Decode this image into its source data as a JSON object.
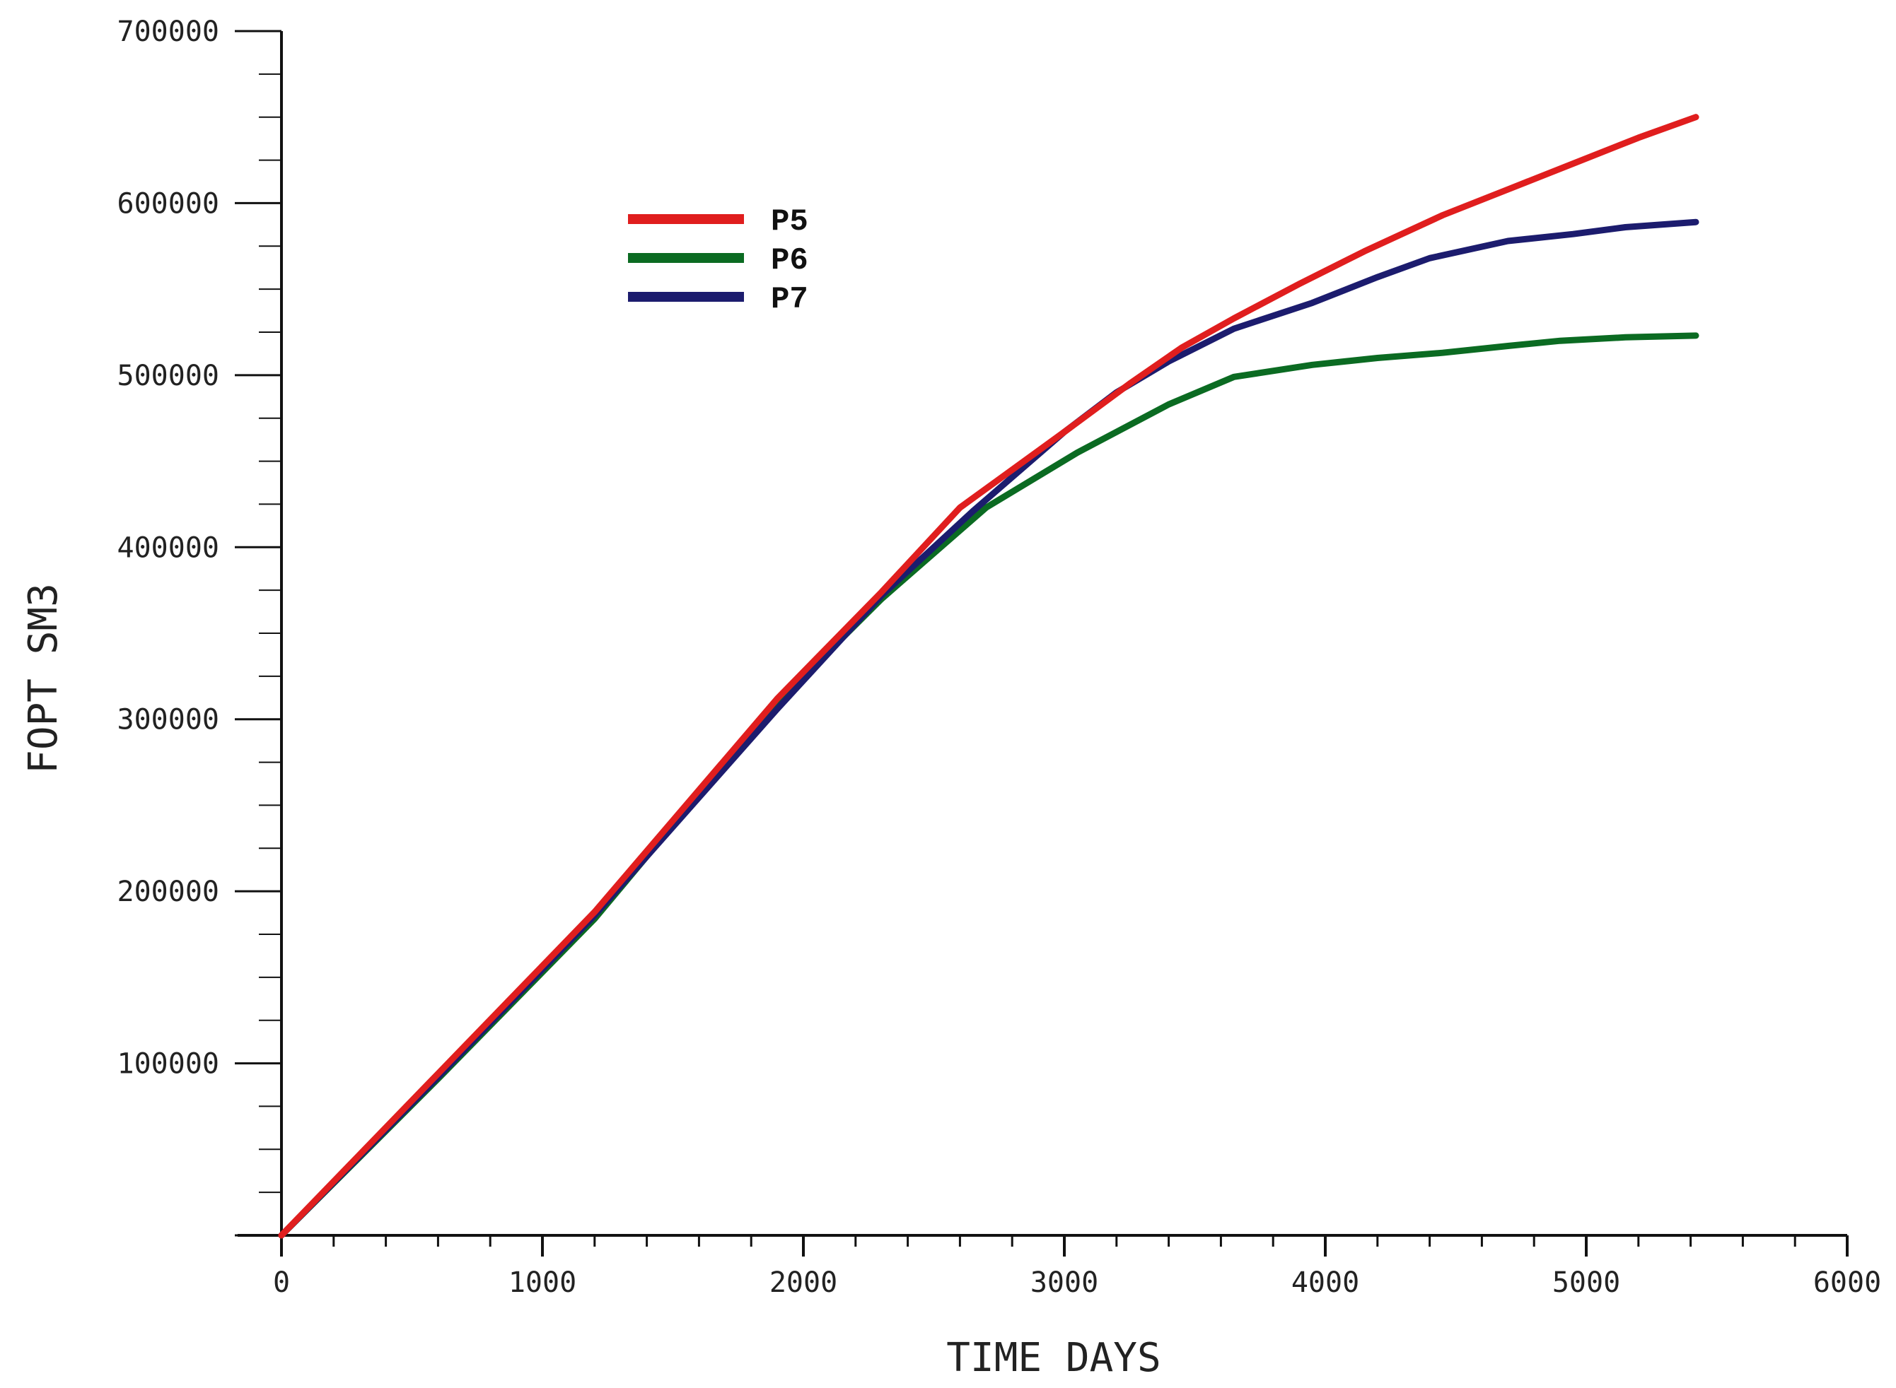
{
  "chart_data": {
    "type": "line",
    "title": "",
    "xlabel": "TIME DAYS",
    "ylabel": "FOPT  SM3",
    "xlim": [
      0,
      6000
    ],
    "ylim": [
      0,
      700000
    ],
    "x_ticks": [
      "0",
      "1000",
      "2000",
      "3000",
      "4000",
      "5000",
      "6000"
    ],
    "y_ticks": [
      "100000",
      "200000",
      "300000",
      "400000",
      "500000",
      "600000",
      "700000"
    ],
    "grid": false,
    "legend_position": "top-left",
    "series": [
      {
        "name": "P5",
        "color": "#e01e1e",
        "x": [
          0,
          600,
          1200,
          1900,
          2300,
          2600,
          3000,
          3250,
          3450,
          3650,
          3900,
          4150,
          4450,
          4700,
          4950,
          5200,
          5420
        ],
        "y": [
          0,
          94000,
          188000,
          312000,
          374000,
          423000,
          467000,
          495000,
          516000,
          533000,
          553000,
          572000,
          593000,
          608000,
          623000,
          638000,
          650000
        ]
      },
      {
        "name": "P6",
        "color": "#0b6b22",
        "x": [
          0,
          600,
          1200,
          1850,
          2300,
          2700,
          3050,
          3400,
          3650,
          3950,
          4200,
          4450,
          4700,
          4900,
          5150,
          5420
        ],
        "y": [
          0,
          91000,
          184000,
          302000,
          370000,
          423000,
          455000,
          483000,
          499000,
          506000,
          510000,
          513000,
          517000,
          520000,
          522000,
          523000
        ]
      },
      {
        "name": "P7",
        "color": "#1c1c6e",
        "x": [
          0,
          600,
          1200,
          1900,
          2300,
          2650,
          3000,
          3200,
          3400,
          3650,
          3950,
          4200,
          4400,
          4700,
          4950,
          5150,
          5420
        ],
        "y": [
          0,
          92000,
          186000,
          306000,
          372000,
          421000,
          467000,
          490000,
          508000,
          527000,
          542000,
          557000,
          568000,
          578000,
          582000,
          586000,
          589000
        ]
      }
    ]
  }
}
